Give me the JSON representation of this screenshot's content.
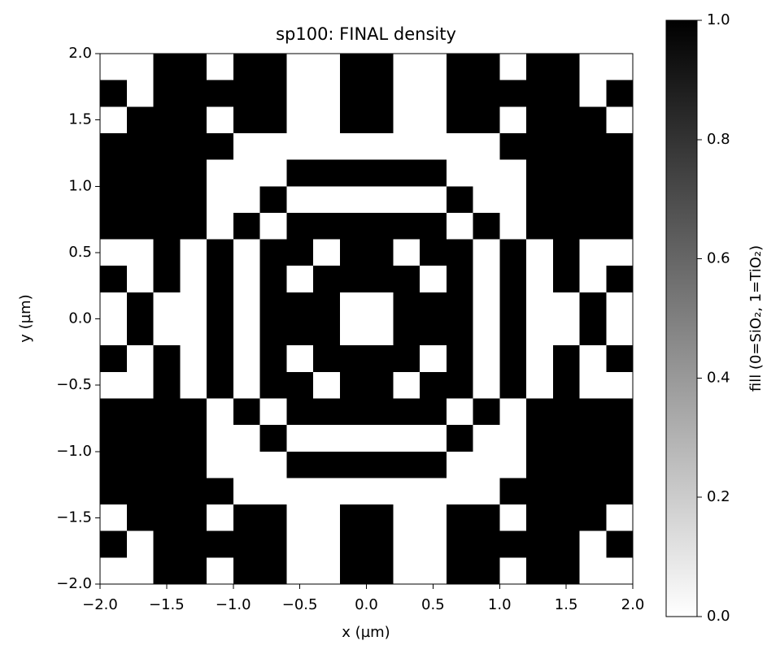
{
  "chart_data": {
    "type": "heatmap",
    "title": "sp100: FINAL density",
    "xlabel": "x (µm)",
    "ylabel": "y (µm)",
    "xlim": [
      -2,
      2
    ],
    "ylim": [
      -2,
      2
    ],
    "xticks": [
      {
        "value": -2,
        "label": "−2.0"
      },
      {
        "value": -1.5,
        "label": "−1.5"
      },
      {
        "value": -1,
        "label": "−1.0"
      },
      {
        "value": -0.5,
        "label": "−0.5"
      },
      {
        "value": 0,
        "label": "0.0"
      },
      {
        "value": 0.5,
        "label": "0.5"
      },
      {
        "value": 1,
        "label": "1.0"
      },
      {
        "value": 1.5,
        "label": "1.5"
      },
      {
        "value": 2,
        "label": "2.0"
      }
    ],
    "yticks": [
      {
        "value": -2,
        "label": "−2.0"
      },
      {
        "value": -1.5,
        "label": "−1.5"
      },
      {
        "value": -1,
        "label": "−1.0"
      },
      {
        "value": -0.5,
        "label": "−0.5"
      },
      {
        "value": 0,
        "label": "0.0"
      },
      {
        "value": 0.5,
        "label": "0.5"
      },
      {
        "value": 1,
        "label": "1.0"
      },
      {
        "value": 1.5,
        "label": "1.5"
      },
      {
        "value": 2,
        "label": "2.0"
      }
    ],
    "colorbar": {
      "label": "fill (0=SiO₂, 1=TiO₂)",
      "lim": [
        0,
        1
      ],
      "colors": [
        "#ffffff",
        "#000000"
      ],
      "ticks": [
        {
          "value": 0,
          "label": "0.0"
        },
        {
          "value": 0.2,
          "label": "0.2"
        },
        {
          "value": 0.4,
          "label": "0.4"
        },
        {
          "value": 0.6,
          "label": "0.6"
        },
        {
          "value": 0.8,
          "label": "0.8"
        },
        {
          "value": 1,
          "label": "1.0"
        }
      ]
    },
    "z": [
      [
        0,
        0,
        1,
        1,
        0,
        1,
        1,
        0,
        0,
        1,
        1,
        0,
        0,
        1,
        1,
        0,
        1,
        1,
        0,
        0
      ],
      [
        1,
        0,
        1,
        1,
        1,
        1,
        1,
        0,
        0,
        1,
        1,
        0,
        0,
        1,
        1,
        1,
        1,
        1,
        0,
        1
      ],
      [
        0,
        1,
        1,
        1,
        0,
        1,
        1,
        0,
        0,
        1,
        1,
        0,
        0,
        1,
        1,
        0,
        1,
        1,
        1,
        0
      ],
      [
        1,
        1,
        1,
        1,
        1,
        0,
        0,
        0,
        0,
        0,
        0,
        0,
        0,
        0,
        0,
        1,
        1,
        1,
        1,
        1
      ],
      [
        1,
        1,
        1,
        1,
        0,
        0,
        0,
        1,
        1,
        1,
        1,
        1,
        1,
        0,
        0,
        0,
        1,
        1,
        1,
        1
      ],
      [
        1,
        1,
        1,
        1,
        0,
        0,
        1,
        0,
        0,
        0,
        0,
        0,
        0,
        1,
        0,
        0,
        1,
        1,
        1,
        1
      ],
      [
        1,
        1,
        1,
        1,
        0,
        1,
        0,
        1,
        1,
        1,
        1,
        1,
        1,
        0,
        1,
        0,
        1,
        1,
        1,
        1
      ],
      [
        0,
        0,
        1,
        0,
        1,
        0,
        1,
        1,
        0,
        1,
        1,
        0,
        1,
        1,
        0,
        1,
        0,
        1,
        0,
        0
      ],
      [
        1,
        0,
        1,
        0,
        1,
        0,
        1,
        0,
        1,
        1,
        1,
        1,
        0,
        1,
        0,
        1,
        0,
        1,
        0,
        1
      ],
      [
        0,
        1,
        0,
        0,
        1,
        0,
        1,
        1,
        1,
        0,
        0,
        1,
        1,
        1,
        0,
        1,
        0,
        0,
        1,
        0
      ],
      [
        0,
        1,
        0,
        0,
        1,
        0,
        1,
        1,
        1,
        0,
        0,
        1,
        1,
        1,
        0,
        1,
        0,
        0,
        1,
        0
      ],
      [
        1,
        0,
        1,
        0,
        1,
        0,
        1,
        0,
        1,
        1,
        1,
        1,
        0,
        1,
        0,
        1,
        0,
        1,
        0,
        1
      ],
      [
        0,
        0,
        1,
        0,
        1,
        0,
        1,
        1,
        0,
        1,
        1,
        0,
        1,
        1,
        0,
        1,
        0,
        1,
        0,
        0
      ],
      [
        1,
        1,
        1,
        1,
        0,
        1,
        0,
        1,
        1,
        1,
        1,
        1,
        1,
        0,
        1,
        0,
        1,
        1,
        1,
        1
      ],
      [
        1,
        1,
        1,
        1,
        0,
        0,
        1,
        0,
        0,
        0,
        0,
        0,
        0,
        1,
        0,
        0,
        1,
        1,
        1,
        1
      ],
      [
        1,
        1,
        1,
        1,
        0,
        0,
        0,
        1,
        1,
        1,
        1,
        1,
        1,
        0,
        0,
        0,
        1,
        1,
        1,
        1
      ],
      [
        1,
        1,
        1,
        1,
        1,
        0,
        0,
        0,
        0,
        0,
        0,
        0,
        0,
        0,
        0,
        1,
        1,
        1,
        1,
        1
      ],
      [
        0,
        1,
        1,
        1,
        0,
        1,
        1,
        0,
        0,
        1,
        1,
        0,
        0,
        1,
        1,
        0,
        1,
        1,
        1,
        0
      ],
      [
        1,
        0,
        1,
        1,
        1,
        1,
        1,
        0,
        0,
        1,
        1,
        0,
        0,
        1,
        1,
        1,
        1,
        1,
        0,
        1
      ],
      [
        0,
        0,
        1,
        1,
        0,
        1,
        1,
        0,
        0,
        1,
        1,
        0,
        0,
        1,
        1,
        0,
        1,
        1,
        0,
        0
      ]
    ]
  }
}
